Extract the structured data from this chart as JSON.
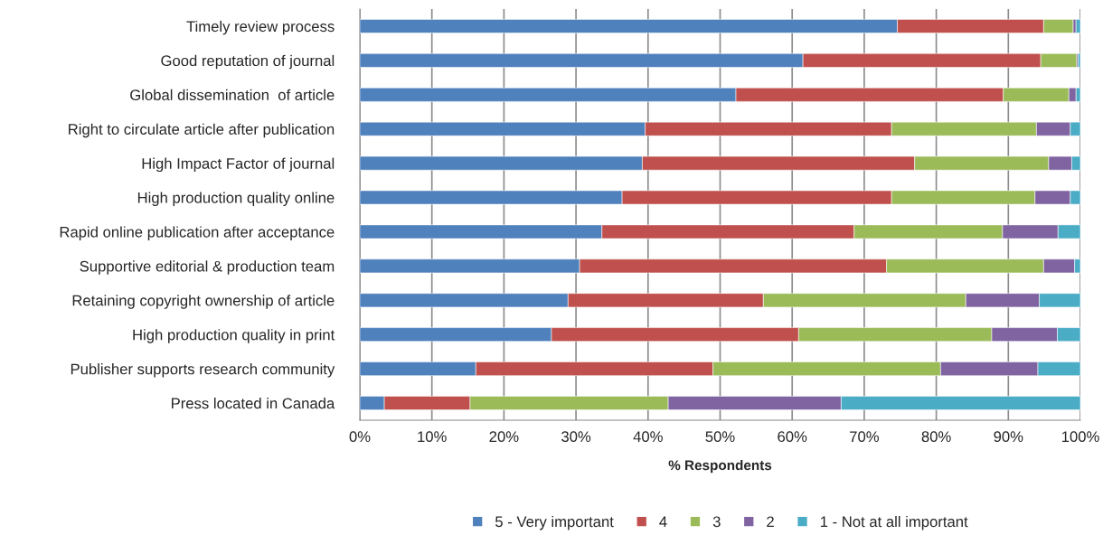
{
  "chart_data": {
    "type": "bar",
    "orientation": "horizontal",
    "stacked": true,
    "xlabel": "% Respondents",
    "categories": [
      "Timely review process",
      "Good reputation of journal",
      "Global dissemination  of article",
      "Right to circulate article after publication",
      "High Impact Factor of journal",
      "High production quality online",
      "Rapid online publication after acceptance",
      "Supportive editorial & production team",
      "Retaining copyright ownership of article",
      "High production quality in print",
      "Publisher supports research community",
      "Press located in Canada"
    ],
    "series": [
      {
        "name": "5 - Very important",
        "color": "#4f81bd",
        "values": [
          74.6,
          61.5,
          52.2,
          39.6,
          39.2,
          36.4,
          33.6,
          30.5,
          28.9,
          26.6,
          16.1,
          3.4
        ]
      },
      {
        "name": "4",
        "color": "#c0504d",
        "values": [
          20.3,
          33.0,
          37.1,
          34.2,
          37.8,
          37.4,
          35.0,
          42.6,
          27.1,
          34.3,
          32.9,
          11.9
        ]
      },
      {
        "name": "3",
        "color": "#9bbb59",
        "values": [
          4.1,
          5.0,
          9.1,
          20.1,
          18.6,
          19.9,
          20.6,
          21.8,
          28.1,
          26.8,
          31.6,
          27.5
        ]
      },
      {
        "name": "2",
        "color": "#8064a2",
        "values": [
          0.4,
          0.2,
          1.0,
          4.7,
          3.2,
          4.9,
          7.7,
          4.3,
          10.2,
          9.1,
          13.5,
          24.0
        ]
      },
      {
        "name": "1 - Not at all important",
        "color": "#4bacc6",
        "values": [
          0.6,
          0.3,
          0.6,
          1.4,
          1.2,
          1.4,
          3.1,
          0.8,
          5.7,
          3.2,
          5.9,
          33.2
        ]
      }
    ],
    "xlim": [
      0,
      100
    ],
    "xticks": [
      {
        "value": 0,
        "label": "0%"
      },
      {
        "value": 10,
        "label": "10%"
      },
      {
        "value": 20,
        "label": "20%"
      },
      {
        "value": 30,
        "label": "30%"
      },
      {
        "value": 40,
        "label": "40%"
      },
      {
        "value": 50,
        "label": "50%"
      },
      {
        "value": 60,
        "label": "60%"
      },
      {
        "value": 70,
        "label": "70%"
      },
      {
        "value": 80,
        "label": "80%"
      },
      {
        "value": 90,
        "label": "90%"
      },
      {
        "value": 100,
        "label": "100%"
      }
    ],
    "grid": "x",
    "legend": "bottom"
  }
}
